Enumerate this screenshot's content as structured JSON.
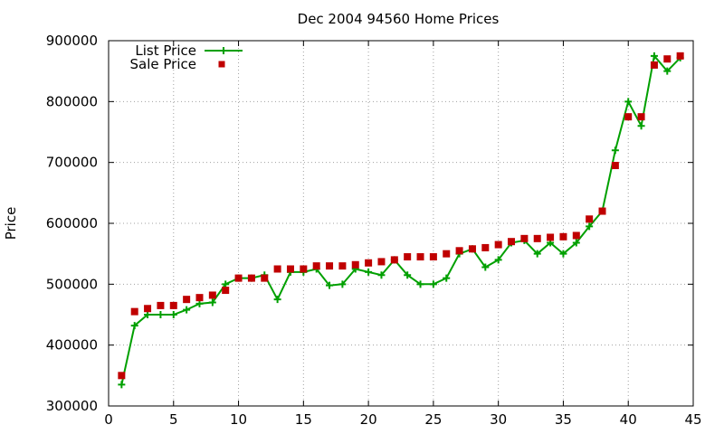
{
  "chart_data": {
    "type": "line",
    "title": "Dec 2004 94560 Home Prices",
    "xlabel": "",
    "ylabel": "Price",
    "xlim": [
      0,
      45
    ],
    "ylim": [
      300000,
      900000
    ],
    "xticks": [
      0,
      5,
      10,
      15,
      20,
      25,
      30,
      35,
      40,
      45
    ],
    "yticks": [
      300000,
      400000,
      500000,
      600000,
      700000,
      800000,
      900000
    ],
    "grid": true,
    "legend": "top-left",
    "colors": {
      "list": "#00a000",
      "sale": "#c00000"
    },
    "x": [
      1,
      2,
      3,
      4,
      5,
      6,
      7,
      8,
      9,
      10,
      11,
      12,
      13,
      14,
      15,
      16,
      17,
      18,
      19,
      20,
      21,
      22,
      23,
      24,
      25,
      26,
      27,
      28,
      29,
      30,
      31,
      32,
      33,
      34,
      35,
      36,
      37,
      38,
      39,
      40,
      41,
      42,
      43,
      44
    ],
    "series": [
      {
        "name": "List Price",
        "style": "line+cross",
        "values": [
          335000,
          432000,
          450000,
          450000,
          450000,
          458000,
          468000,
          470000,
          500000,
          510000,
          510000,
          515000,
          475000,
          520000,
          520000,
          525000,
          498000,
          500000,
          525000,
          520000,
          515000,
          540000,
          515000,
          500000,
          500000,
          510000,
          550000,
          558000,
          528000,
          540000,
          568000,
          572000,
          550000,
          568000,
          550000,
          568000,
          595000,
          620000,
          720000,
          800000,
          760000,
          875000,
          850000,
          872000
        ]
      },
      {
        "name": "Sale Price",
        "style": "square",
        "values": [
          350000,
          455000,
          460000,
          465000,
          465000,
          475000,
          478000,
          482000,
          490000,
          510000,
          510000,
          510000,
          525000,
          525000,
          525000,
          530000,
          530000,
          530000,
          532000,
          535000,
          537000,
          540000,
          545000,
          545000,
          545000,
          550000,
          555000,
          558000,
          560000,
          565000,
          570000,
          575000,
          575000,
          577000,
          578000,
          580000,
          607000,
          620000,
          695000,
          775000,
          775000,
          860000,
          870000,
          875000
        ]
      }
    ]
  }
}
